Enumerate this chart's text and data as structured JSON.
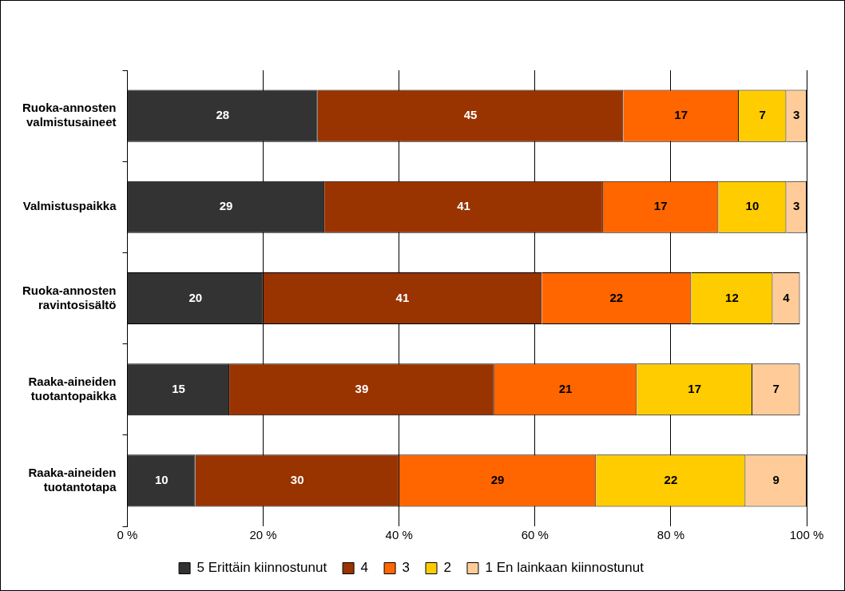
{
  "chart_data": {
    "type": "bar",
    "orientation": "horizontal",
    "stacked": true,
    "data_labels": true,
    "grid": "x",
    "legend": "bottom",
    "categories": [
      "Ruoka-annosten valmistusaineet",
      "Valmistuspaikka",
      "Ruoka-annosten ravintosisältö",
      "Raaka-aineiden tuotantopaikka",
      "Raaka-aineiden tuotantotapa"
    ],
    "series": [
      {
        "name": "5 Erittäin kiinnostunut",
        "color": "#333333",
        "values": [
          28,
          29,
          20,
          15,
          10
        ]
      },
      {
        "name": "4",
        "color": "#993300",
        "values": [
          45,
          41,
          41,
          39,
          30
        ]
      },
      {
        "name": "3",
        "color": "#ff6600",
        "values": [
          17,
          17,
          22,
          21,
          29
        ]
      },
      {
        "name": "2",
        "color": "#ffcc00",
        "values": [
          7,
          10,
          12,
          17,
          22
        ]
      },
      {
        "name": "1 En lainkaan kiinnostunut",
        "color": "#ffcc99",
        "values": [
          3,
          3,
          4,
          7,
          9
        ]
      }
    ],
    "xlim": [
      0,
      100
    ],
    "xticks": [
      {
        "value": 0,
        "label": "0 %"
      },
      {
        "value": 20,
        "label": "20 %"
      },
      {
        "value": 40,
        "label": "40 %"
      },
      {
        "value": 60,
        "label": "60 %"
      },
      {
        "value": 80,
        "label": "80 %"
      },
      {
        "value": 100,
        "label": "100 %"
      }
    ]
  }
}
